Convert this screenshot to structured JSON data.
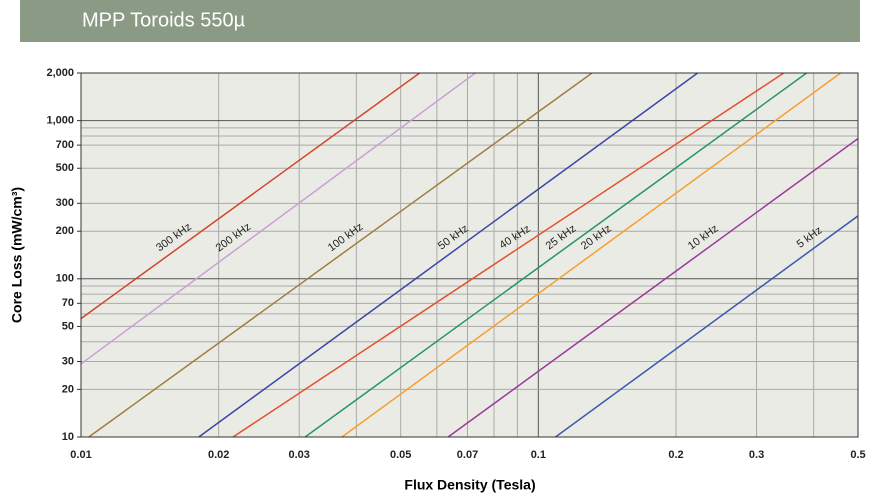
{
  "chart_data": {
    "type": "line",
    "title": "MPP Toroids 550µ",
    "xlabel": "Flux Density (Tesla)",
    "ylabel": "Core Loss (mW/cm³)",
    "xscale": "log",
    "yscale": "log",
    "grid": true,
    "xlim": [
      0.01,
      0.5
    ],
    "ylim": [
      10,
      2000
    ],
    "xticks": [
      0.01,
      0.02,
      0.03,
      0.05,
      0.07,
      0.1,
      0.2,
      0.3,
      0.5
    ],
    "xminor": [
      0.04,
      0.06,
      0.08,
      0.09,
      0.4
    ],
    "yticks": [
      10,
      20,
      30,
      50,
      70,
      100,
      200,
      300,
      500,
      700,
      {
        "value": 1000,
        "label": "1,000"
      },
      {
        "value": 2000,
        "label": "2,000"
      }
    ],
    "yminor": [
      40,
      60,
      80,
      90,
      800,
      900
    ],
    "series": [
      {
        "name": "300 kHz",
        "color": "#d2452b",
        "x": [
          0.01,
          0.055
        ],
        "values": [
          56,
          2000
        ]
      },
      {
        "name": "200 kHz",
        "color": "#c9a0d6",
        "x": [
          0.01,
          0.0728
        ],
        "values": [
          29,
          2000
        ]
      },
      {
        "name": "100 kHz",
        "color": "#9e7e3e",
        "x": [
          0.0104,
          0.131
        ],
        "values": [
          10,
          2000
        ]
      },
      {
        "name": "50 kHz",
        "color": "#3a45a6",
        "x": [
          0.0181,
          0.223
        ],
        "values": [
          10,
          2000
        ]
      },
      {
        "name": "40 kHz",
        "color": "#e2512f",
        "x": [
          0.0215,
          0.344
        ],
        "values": [
          10,
          2000
        ]
      },
      {
        "name": "25 kHz",
        "color": "#259469",
        "x": [
          0.0309,
          0.386
        ],
        "values": [
          10,
          2000
        ]
      },
      {
        "name": "20 kHz",
        "color": "#f5a02e",
        "x": [
          0.0372,
          0.458
        ],
        "values": [
          10,
          2000
        ]
      },
      {
        "name": "10 kHz",
        "color": "#983a98",
        "x": [
          0.0635,
          0.5
        ],
        "values": [
          10,
          770
        ]
      },
      {
        "name": "5 kHz",
        "color": "#3a58ae",
        "x": [
          0.109,
          0.5
        ],
        "values": [
          10,
          250
        ]
      }
    ]
  }
}
